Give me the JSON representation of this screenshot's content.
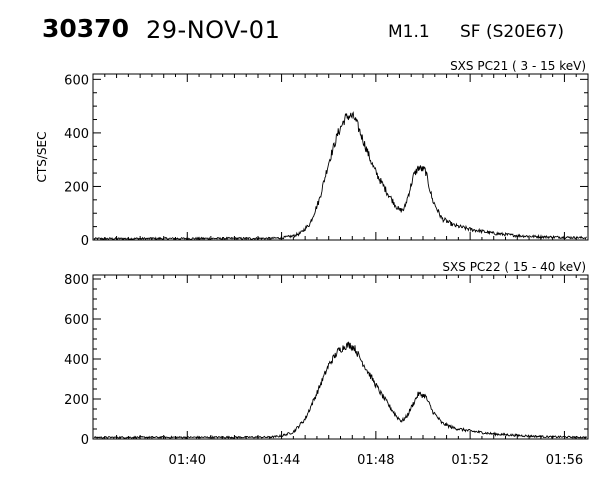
{
  "header": {
    "flare_id": "30370",
    "date": "29-NOV-01",
    "goes_class": "M1.1",
    "location": "SF (S20E67)"
  },
  "chart_data": [
    {
      "type": "line",
      "title": "SXS PC21  (  3 - 15 keV)",
      "ylabel": "CTS/SEC",
      "xlabel": "",
      "x_unit": "minutes after 01:36 UT",
      "xlim": [
        0,
        21
      ],
      "ylim": [
        0,
        620
      ],
      "yticks": [
        0,
        200,
        400,
        600
      ],
      "ytick_labels": [
        "0",
        "200",
        "400",
        "600"
      ],
      "series": [
        {
          "x": [
            0,
            7.5,
            8.0,
            8.5,
            8.8,
            9.2,
            9.6,
            10.0,
            10.4,
            10.7,
            10.9,
            11.1,
            11.3,
            11.6,
            11.9,
            12.2,
            12.5,
            12.8,
            13.0,
            13.2,
            13.4,
            13.6,
            13.8,
            14.1,
            14.4,
            14.8,
            15.3,
            16.0,
            17.0,
            18.0,
            19.0,
            21.0
          ],
          "y": [
            5,
            6,
            8,
            15,
            25,
            60,
            150,
            290,
            400,
            455,
            465,
            455,
            410,
            340,
            270,
            220,
            175,
            135,
            110,
            115,
            175,
            240,
            270,
            260,
            150,
            80,
            55,
            40,
            25,
            16,
            12,
            8
          ]
        }
      ]
    },
    {
      "type": "line",
      "title": "SXS PC22  ( 15 - 40 keV)",
      "ylabel": "",
      "xlabel": "",
      "x_unit": "minutes after 01:36 UT",
      "xlim": [
        0,
        21
      ],
      "ylim": [
        0,
        820
      ],
      "yticks": [
        0,
        200,
        400,
        600,
        800
      ],
      "ytick_labels": [
        "0",
        "200",
        "400",
        "600",
        "800"
      ],
      "xticks": [
        4,
        8,
        12,
        16,
        20
      ],
      "xtick_labels": [
        "01:40",
        "01:44",
        "01:48",
        "01:52",
        "01:56"
      ],
      "series": [
        {
          "x": [
            0,
            7.5,
            8.0,
            8.5,
            9.0,
            9.5,
            10.0,
            10.4,
            10.7,
            10.9,
            11.1,
            11.3,
            11.6,
            11.9,
            12.2,
            12.6,
            12.9,
            13.1,
            13.3,
            13.6,
            13.8,
            14.1,
            14.4,
            14.8,
            15.3,
            16.0,
            17.0,
            18.0,
            19.0,
            21.0
          ],
          "y": [
            8,
            9,
            15,
            35,
            100,
            230,
            370,
            440,
            465,
            470,
            455,
            410,
            350,
            290,
            230,
            160,
            110,
            90,
            110,
            180,
            225,
            215,
            140,
            80,
            55,
            40,
            25,
            18,
            12,
            8
          ]
        }
      ]
    }
  ]
}
